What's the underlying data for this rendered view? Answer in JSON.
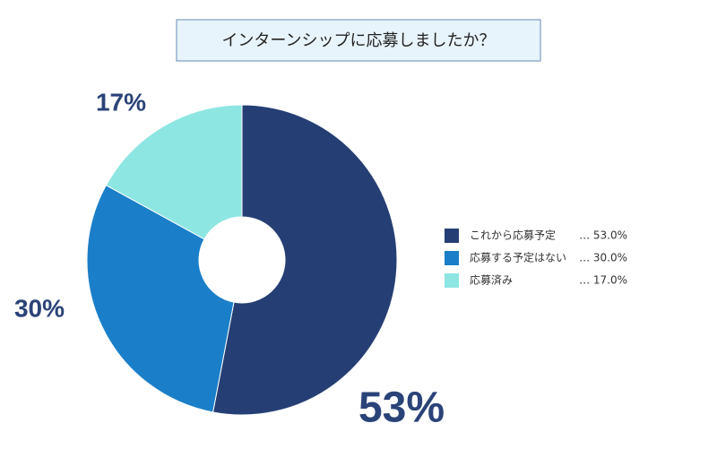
{
  "chart_data": {
    "type": "donut",
    "title": "インターンシップに応募しましたか？",
    "categories": [
      "これから応募予定",
      "応募する予定はない",
      "応募済み"
    ],
    "values": [
      53,
      30,
      17
    ],
    "value_labels": [
      "53%",
      "30%",
      "17%"
    ],
    "legend_value_labels": [
      "… 53.0%",
      "… 30.0%",
      "… 17.0%"
    ],
    "colors": [
      "#253f74",
      "#1a7fc8",
      "#8de6e2"
    ],
    "legend": "right"
  }
}
